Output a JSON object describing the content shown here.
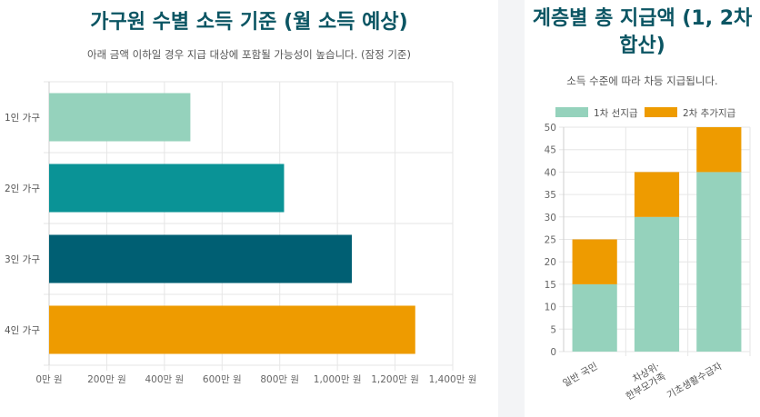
{
  "left_panel": {
    "title": "가구원 수별 소득 기준 (월 소득 예상)",
    "subtitle": "아래 금액 이하일 경우 지급 대상에 포함될 가능성이 높습니다. (잠정 기준)"
  },
  "right_panel": {
    "title": "계층별 총 지급액 (1, 2차 합산)",
    "subtitle": "소득 수준에 따라 차등 지급됩니다."
  },
  "colors": {
    "title": "#0b5563",
    "mint": "#95d2bc",
    "teal": "#0a9396",
    "dark_teal": "#005f73",
    "orange": "#ee9b00"
  },
  "chart_data": [
    {
      "type": "bar",
      "orientation": "horizontal",
      "categories": [
        "1인 가구",
        "2인 가구",
        "3인 가구",
        "4인 가구"
      ],
      "values": [
        4900000,
        8150000,
        10500000,
        12700000
      ],
      "bar_colors": [
        "#95d2bc",
        "#0a9396",
        "#005f73",
        "#ee9b00"
      ],
      "xlim": [
        0,
        14000000
      ],
      "x_ticks": [
        0,
        2000000,
        4000000,
        6000000,
        8000000,
        10000000,
        12000000,
        14000000
      ],
      "x_tick_labels": [
        "0만 원",
        "200만 원",
        "400만 원",
        "600만 원",
        "800만 원",
        "1,000만 원",
        "1,200만 원",
        "1,400만 원"
      ],
      "grid": true,
      "legend": "none"
    },
    {
      "type": "bar",
      "stacked": true,
      "categories": [
        "일반 국민",
        "차상위·\n한부모가족",
        "기초생활수급자"
      ],
      "series": [
        {
          "name": "1차 선지급",
          "values": [
            15,
            30,
            40
          ],
          "color": "#95d2bc"
        },
        {
          "name": "2차 추가지급",
          "values": [
            10,
            10,
            10
          ],
          "color": "#ee9b00"
        }
      ],
      "ylim": [
        0,
        50
      ],
      "y_ticks": [
        0,
        5,
        10,
        15,
        20,
        25,
        30,
        35,
        40,
        45,
        50
      ],
      "grid": true,
      "legend": "top"
    }
  ]
}
